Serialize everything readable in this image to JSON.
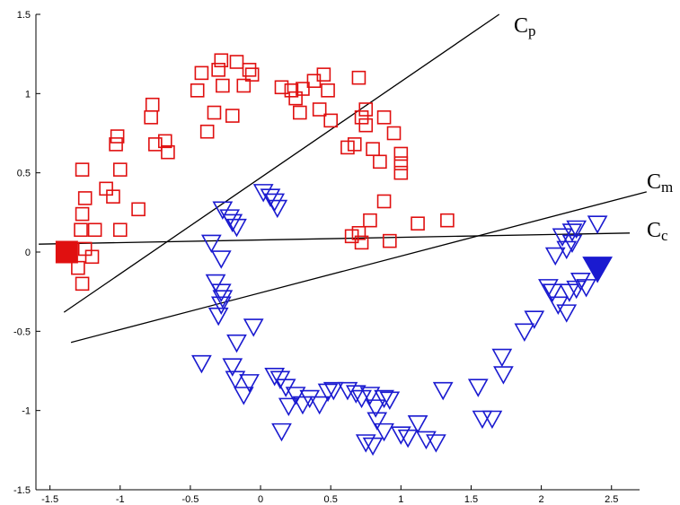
{
  "chart_data": {
    "type": "scatter",
    "xlim": [
      -1.6,
      2.7
    ],
    "ylim": [
      -1.5,
      1.5
    ],
    "x_ticks": [
      -1.5,
      -1,
      -0.5,
      0,
      0.5,
      1,
      1.5,
      2,
      2.5
    ],
    "y_ticks": [
      -1.5,
      -1,
      -0.5,
      0,
      0.5,
      1,
      1.5
    ],
    "x_tick_labels": [
      "-1.5",
      "-1",
      "-0.5",
      "0",
      "0.5",
      "1",
      "1.5",
      "2",
      "2.5"
    ],
    "y_tick_labels": [
      "-1.5",
      "-1",
      "-0.5",
      "0",
      "0.5",
      "1",
      "1.5"
    ],
    "grid": false,
    "colors": {
      "red": "#e01010",
      "blue": "#1a1ad0",
      "line": "#000000"
    },
    "series": [
      {
        "marker": "open-square",
        "color": "#e01010",
        "points": [
          [
            -1.27,
            0.52
          ],
          [
            -1.25,
            0.34
          ],
          [
            -1.27,
            0.24
          ],
          [
            -1.28,
            0.14
          ],
          [
            -1.25,
            0.02
          ],
          [
            -1.18,
            0.14
          ],
          [
            -1.2,
            -0.03
          ],
          [
            -1.27,
            -0.2
          ],
          [
            -1.3,
            -0.1
          ],
          [
            -1.1,
            0.4
          ],
          [
            -1.05,
            0.35
          ],
          [
            -1.0,
            0.52
          ],
          [
            -1.02,
            0.73
          ],
          [
            -1.03,
            0.68
          ],
          [
            -1.0,
            0.14
          ],
          [
            -0.87,
            0.27
          ],
          [
            -0.77,
            0.93
          ],
          [
            -0.78,
            0.85
          ],
          [
            -0.75,
            0.68
          ],
          [
            -0.68,
            0.7
          ],
          [
            -0.66,
            0.63
          ],
          [
            -0.45,
            1.02
          ],
          [
            -0.42,
            1.13
          ],
          [
            -0.38,
            0.76
          ],
          [
            -0.33,
            0.88
          ],
          [
            -0.3,
            1.15
          ],
          [
            -0.28,
            1.21
          ],
          [
            -0.27,
            1.05
          ],
          [
            -0.2,
            0.86
          ],
          [
            -0.17,
            1.2
          ],
          [
            -0.12,
            1.05
          ],
          [
            -0.08,
            1.15
          ],
          [
            -0.06,
            1.12
          ],
          [
            0.15,
            1.04
          ],
          [
            0.22,
            1.02
          ],
          [
            0.25,
            0.97
          ],
          [
            0.28,
            0.88
          ],
          [
            0.3,
            1.03
          ],
          [
            0.38,
            1.08
          ],
          [
            0.42,
            0.9
          ],
          [
            0.45,
            1.12
          ],
          [
            0.48,
            1.02
          ],
          [
            0.5,
            0.83
          ],
          [
            0.62,
            0.66
          ],
          [
            0.67,
            0.68
          ],
          [
            0.7,
            1.1
          ],
          [
            0.72,
            0.85
          ],
          [
            0.75,
            0.9
          ],
          [
            0.75,
            0.8
          ],
          [
            0.8,
            0.65
          ],
          [
            0.85,
            0.57
          ],
          [
            0.88,
            0.85
          ],
          [
            0.95,
            0.75
          ],
          [
            1.0,
            0.62
          ],
          [
            1.0,
            0.56
          ],
          [
            1.0,
            0.5
          ],
          [
            0.65,
            0.1
          ],
          [
            0.7,
            0.12
          ],
          [
            0.72,
            0.06
          ],
          [
            0.78,
            0.2
          ],
          [
            0.88,
            0.32
          ],
          [
            0.92,
            0.07
          ],
          [
            1.12,
            0.18
          ],
          [
            1.33,
            0.2
          ]
        ]
      },
      {
        "marker": "filled-square",
        "color": "#e01010",
        "points": [
          [
            -1.38,
            0.0
          ]
        ]
      },
      {
        "marker": "open-triangle-down",
        "color": "#1a1ad0",
        "points": [
          [
            -0.27,
            0.27
          ],
          [
            -0.22,
            0.22
          ],
          [
            -0.2,
            0.19
          ],
          [
            -0.17,
            0.16
          ],
          [
            -0.35,
            0.06
          ],
          [
            -0.28,
            -0.04
          ],
          [
            -0.32,
            -0.19
          ],
          [
            -0.28,
            -0.25
          ],
          [
            -0.27,
            -0.29
          ],
          [
            -0.28,
            -0.33
          ],
          [
            -0.3,
            -0.4
          ],
          [
            0.02,
            0.38
          ],
          [
            0.07,
            0.35
          ],
          [
            0.1,
            0.32
          ],
          [
            0.12,
            0.28
          ],
          [
            -0.05,
            -0.47
          ],
          [
            -0.17,
            -0.57
          ],
          [
            -0.42,
            -0.7
          ],
          [
            -0.2,
            -0.72
          ],
          [
            -0.18,
            -0.8
          ],
          [
            -0.08,
            -0.82
          ],
          [
            -0.12,
            -0.9
          ],
          [
            0.1,
            -0.78
          ],
          [
            0.14,
            -0.8
          ],
          [
            0.18,
            -0.85
          ],
          [
            0.2,
            -0.97
          ],
          [
            0.25,
            -0.9
          ],
          [
            0.3,
            -0.96
          ],
          [
            0.35,
            -0.92
          ],
          [
            0.42,
            -0.96
          ],
          [
            0.48,
            -0.88
          ],
          [
            0.52,
            -0.87
          ],
          [
            0.62,
            -0.87
          ],
          [
            0.68,
            -0.89
          ],
          [
            0.72,
            -0.92
          ],
          [
            0.78,
            -0.9
          ],
          [
            0.82,
            -0.98
          ],
          [
            0.88,
            -0.92
          ],
          [
            0.92,
            -0.93
          ],
          [
            0.15,
            -1.13
          ],
          [
            0.83,
            -1.06
          ],
          [
            0.88,
            -1.13
          ],
          [
            0.75,
            -1.2
          ],
          [
            0.8,
            -1.22
          ],
          [
            1.0,
            -1.15
          ],
          [
            1.05,
            -1.17
          ],
          [
            1.12,
            -1.08
          ],
          [
            1.18,
            -1.18
          ],
          [
            1.25,
            -1.2
          ],
          [
            1.3,
            -0.87
          ],
          [
            1.55,
            -0.85
          ],
          [
            1.58,
            -1.05
          ],
          [
            1.65,
            -1.05
          ],
          [
            1.72,
            -0.66
          ],
          [
            1.73,
            -0.77
          ],
          [
            1.88,
            -0.5
          ],
          [
            1.95,
            -0.42
          ],
          [
            2.05,
            -0.22
          ],
          [
            2.08,
            -0.25
          ],
          [
            2.12,
            -0.33
          ],
          [
            2.18,
            -0.38
          ],
          [
            2.2,
            -0.25
          ],
          [
            2.25,
            -0.23
          ],
          [
            2.28,
            -0.18
          ],
          [
            2.32,
            -0.22
          ],
          [
            2.1,
            -0.02
          ],
          [
            2.15,
            0.1
          ],
          [
            2.18,
            0.02
          ],
          [
            2.22,
            0.13
          ],
          [
            2.25,
            0.15
          ],
          [
            2.22,
            0.06
          ],
          [
            2.4,
            0.18
          ]
        ]
      },
      {
        "marker": "filled-triangle-down",
        "color": "#1a1ad0",
        "points": [
          [
            2.4,
            -0.1
          ]
        ]
      }
    ],
    "lines": [
      {
        "label_main": "C",
        "label_sub": "p",
        "from": [
          -1.4,
          -0.38
        ],
        "to": [
          1.7,
          1.5
        ]
      },
      {
        "label_main": "C",
        "label_sub": "m",
        "from": [
          -1.35,
          -0.57
        ],
        "to": [
          2.75,
          0.38
        ]
      },
      {
        "label_main": "C",
        "label_sub": "c",
        "from": [
          -1.58,
          0.05
        ],
        "to": [
          2.63,
          0.12
        ]
      }
    ]
  }
}
